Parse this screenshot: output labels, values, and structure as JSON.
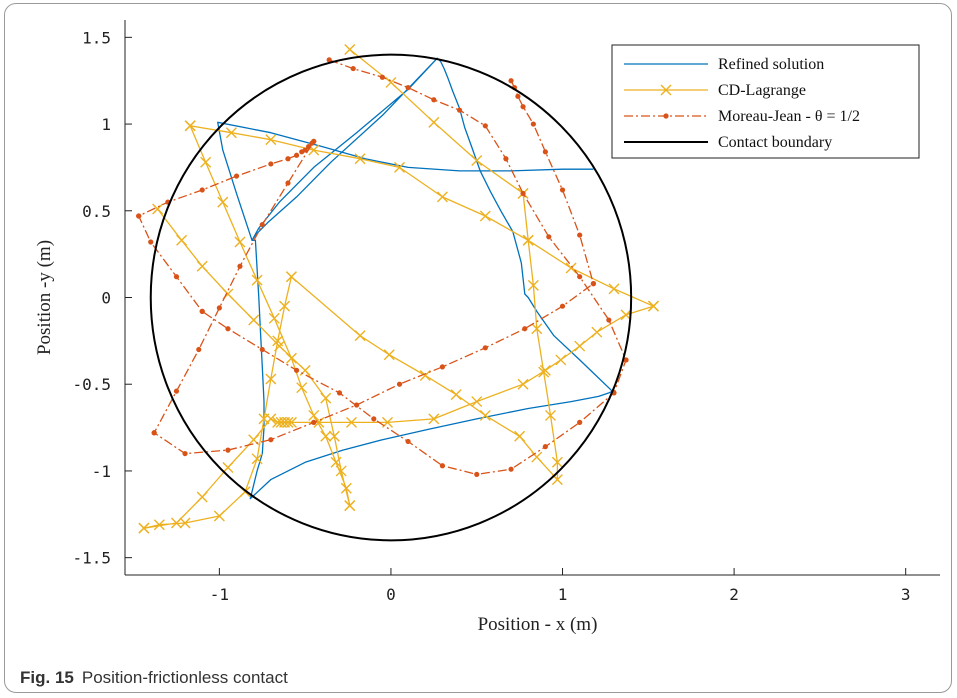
{
  "caption": {
    "label": "Fig. 15",
    "text": "Position-frictionless contact"
  },
  "colors": {
    "refined": "#0072BD",
    "cd": "#EDB120",
    "mj": "#D95319",
    "boundary": "#000000"
  },
  "chart_data": {
    "type": "line",
    "xlabel": "Position - x (m)",
    "ylabel": "Position -y (m)",
    "xlim": [
      -1.55,
      3.2
    ],
    "ylim": [
      -1.6,
      1.6
    ],
    "xticks": [
      -1,
      0,
      1,
      2,
      3
    ],
    "yticks": [
      -1.5,
      -1,
      -0.5,
      0,
      0.5,
      1,
      1.5
    ],
    "xtick_labels": [
      "-1",
      "0",
      "1",
      "2",
      "3"
    ],
    "ytick_labels": [
      "-1.5",
      "-1",
      "-0.5",
      "0",
      "0.5",
      "1",
      "1.5"
    ],
    "grid": false,
    "legend_position": "top-right",
    "legend": [
      "Refined solution",
      "CD-Lagrange",
      "Moreau-Jean - θ = 1/2",
      "Contact boundary"
    ],
    "series": [
      {
        "name": "Refined solution",
        "style": "solid",
        "x": [
          0.27,
          -0.05,
          -0.35,
          -0.55,
          -0.72,
          -0.79,
          -0.81,
          -0.79,
          -0.77,
          -0.76,
          -0.75,
          -0.74,
          -0.74,
          -0.75,
          -0.78,
          -0.8,
          -0.82,
          -0.82,
          -0.7,
          -0.5,
          -0.28,
          -0.05,
          0.22,
          0.5,
          0.8,
          1.05,
          1.21,
          1.27,
          1.29,
          1.29,
          1.1,
          0.95,
          0.85,
          0.8,
          0.78,
          0.78,
          0.76,
          0.71,
          0.64,
          0.58,
          0.52,
          0.47,
          0.43,
          0.4,
          0.36,
          0.33,
          0.31,
          0.29,
          0.27,
          0.27,
          0.1,
          -0.2,
          -0.45,
          -0.65,
          -0.77,
          -0.81,
          -0.81,
          -0.9,
          -0.98,
          -1.01,
          -1.01,
          -0.7,
          -0.4,
          -0.15,
          0.1,
          0.4,
          0.7,
          1.0,
          1.12,
          1.18
        ],
        "y": [
          1.38,
          1.05,
          0.78,
          0.58,
          0.43,
          0.36,
          0.33,
          0.33,
          0.0,
          -0.2,
          -0.4,
          -0.6,
          -0.75,
          -0.9,
          -1.0,
          -1.08,
          -1.16,
          -1.16,
          -1.05,
          -0.95,
          -0.88,
          -0.82,
          -0.76,
          -0.7,
          -0.64,
          -0.6,
          -0.57,
          -0.55,
          -0.54,
          -0.54,
          -0.36,
          -0.22,
          -0.08,
          0.0,
          0.02,
          0.02,
          0.2,
          0.38,
          0.5,
          0.61,
          0.73,
          0.87,
          0.98,
          1.09,
          1.19,
          1.27,
          1.32,
          1.36,
          1.38,
          1.38,
          1.2,
          0.95,
          0.75,
          0.55,
          0.4,
          0.33,
          0.33,
          0.6,
          0.85,
          1.01,
          1.01,
          0.95,
          0.87,
          0.8,
          0.75,
          0.73,
          0.73,
          0.74,
          0.74,
          0.74
        ]
      },
      {
        "name": "CD-Lagrange",
        "style": "solid-with-x-markers",
        "x": [
          -0.24,
          0.0,
          0.25,
          0.5,
          0.77,
          0.77,
          0.8,
          0.83,
          0.85,
          0.89,
          0.93,
          0.97,
          0.97,
          0.85,
          0.75,
          0.55,
          0.38,
          0.2,
          -0.01,
          -0.18,
          -0.58,
          -0.58,
          -0.62,
          -0.66,
          -0.7,
          -0.74,
          -0.78,
          -0.85,
          -1.0,
          -1.2,
          -1.35,
          -1.44,
          -1.44,
          -1.25,
          -1.1,
          -0.95,
          -0.8,
          -0.7,
          -0.66,
          -0.64,
          -0.62,
          -0.6,
          -0.58,
          -0.42,
          -0.23,
          -0.02,
          0.25,
          0.5,
          0.77,
          0.9,
          0.99,
          1.1,
          1.2,
          1.37,
          1.53,
          1.53,
          1.3,
          1.05,
          0.8,
          0.55,
          0.3,
          0.05,
          -0.18,
          -0.45,
          -0.7,
          -0.93,
          -1.17,
          -1.17,
          -1.08,
          -0.98,
          -0.88,
          -0.78,
          -0.68,
          -0.58,
          -0.52,
          -0.45,
          -0.38,
          -0.32,
          -0.26,
          -0.24,
          -0.24,
          -0.29,
          -0.33,
          -0.38,
          -0.5,
          -0.65,
          -0.8,
          -0.95,
          -1.1,
          -1.22,
          -1.36
        ],
        "y": [
          1.43,
          1.24,
          1.01,
          0.79,
          0.6,
          0.6,
          0.33,
          0.07,
          -0.18,
          -0.43,
          -0.68,
          -0.95,
          -1.05,
          -0.92,
          -0.8,
          -0.68,
          -0.56,
          -0.45,
          -0.33,
          -0.22,
          0.12,
          0.12,
          -0.05,
          -0.25,
          -0.47,
          -0.7,
          -0.93,
          -1.12,
          -1.26,
          -1.3,
          -1.31,
          -1.33,
          -1.33,
          -1.3,
          -1.15,
          -0.98,
          -0.82,
          -0.7,
          -0.72,
          -0.72,
          -0.72,
          -0.72,
          -0.72,
          -0.72,
          -0.72,
          -0.72,
          -0.7,
          -0.6,
          -0.5,
          -0.42,
          -0.36,
          -0.28,
          -0.2,
          -0.1,
          -0.05,
          -0.05,
          0.05,
          0.17,
          0.33,
          0.47,
          0.58,
          0.75,
          0.8,
          0.85,
          0.91,
          0.95,
          0.99,
          0.99,
          0.78,
          0.55,
          0.32,
          0.1,
          -0.12,
          -0.35,
          -0.52,
          -0.68,
          -0.8,
          -0.95,
          -1.1,
          -1.2,
          -1.2,
          -1.0,
          -0.8,
          -0.58,
          -0.42,
          -0.28,
          -0.13,
          0.02,
          0.18,
          0.33,
          0.51
        ]
      },
      {
        "name": "Moreau-Jean - θ = 1/2",
        "style": "dash-dot-with-dots",
        "x": [
          -0.36,
          -0.22,
          -0.05,
          0.1,
          0.25,
          0.4,
          0.55,
          0.67,
          0.77,
          0.92,
          1.1,
          1.27,
          1.37,
          1.37,
          1.3,
          1.1,
          0.9,
          0.7,
          0.5,
          0.3,
          0.1,
          -0.1,
          -0.3,
          -0.55,
          -0.75,
          -0.95,
          -1.1,
          -1.1,
          -1.25,
          -1.4,
          -1.47,
          -1.47,
          -1.3,
          -1.1,
          -0.9,
          -0.7,
          -0.6,
          -0.55,
          -0.52,
          -0.5,
          -0.48,
          -0.46,
          -0.45,
          -0.45,
          -0.6,
          -0.75,
          -0.88,
          -1.0,
          -1.12,
          -1.25,
          -1.38,
          -1.38,
          -1.2,
          -0.95,
          -0.7,
          -0.45,
          -0.2,
          0.05,
          0.3,
          0.55,
          0.78,
          1.0,
          1.18,
          1.18,
          1.1,
          1.0,
          0.9,
          0.83,
          0.77,
          0.74,
          0.72,
          0.7
        ],
        "y": [
          1.37,
          1.32,
          1.27,
          1.21,
          1.14,
          1.08,
          0.99,
          0.8,
          0.6,
          0.35,
          0.12,
          -0.13,
          -0.36,
          -0.36,
          -0.55,
          -0.72,
          -0.86,
          -0.99,
          -1.02,
          -0.97,
          -0.83,
          -0.7,
          -0.55,
          -0.42,
          -0.3,
          -0.18,
          -0.08,
          -0.08,
          0.12,
          0.32,
          0.47,
          0.47,
          0.55,
          0.62,
          0.7,
          0.77,
          0.8,
          0.82,
          0.84,
          0.85,
          0.87,
          0.89,
          0.9,
          0.9,
          0.66,
          0.42,
          0.18,
          -0.06,
          -0.3,
          -0.54,
          -0.78,
          -0.78,
          -0.9,
          -0.88,
          -0.82,
          -0.72,
          -0.62,
          -0.5,
          -0.4,
          -0.29,
          -0.18,
          -0.05,
          0.08,
          0.08,
          0.36,
          0.62,
          0.84,
          1.0,
          1.1,
          1.16,
          1.21,
          1.25
        ]
      },
      {
        "name": "Contact boundary",
        "style": "solid",
        "shape": "circle",
        "center": [
          0,
          0
        ],
        "radius": 1.4
      }
    ]
  }
}
